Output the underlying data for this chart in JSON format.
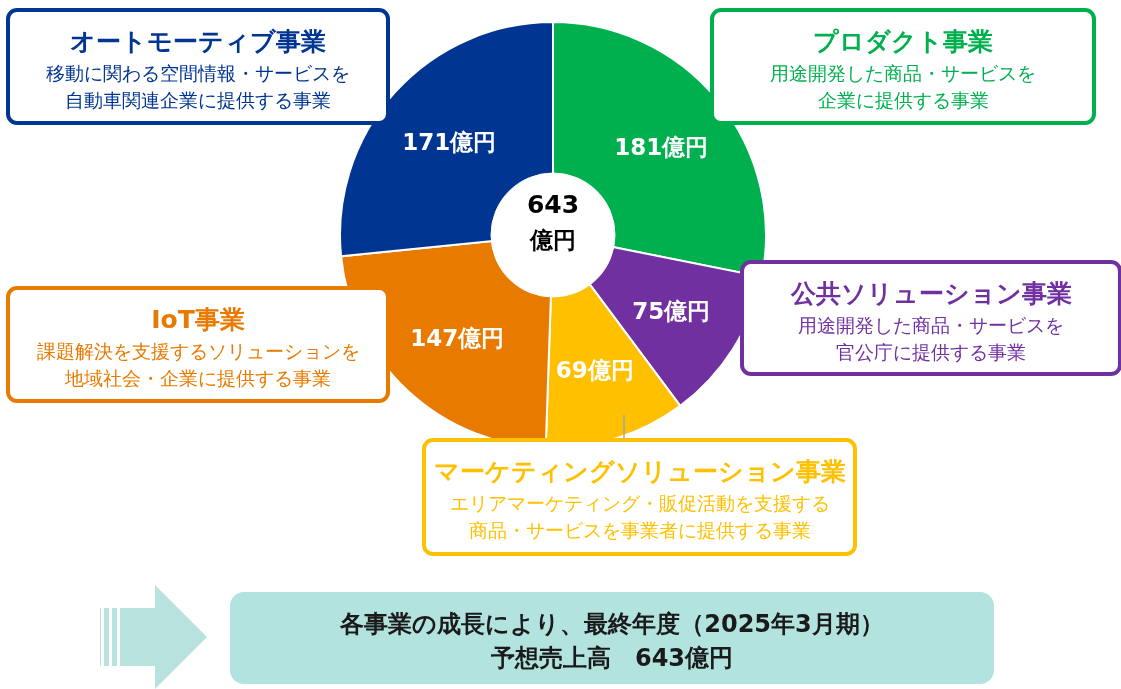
{
  "chart_data": {
    "type": "donut",
    "categories": [
      "プロダクト事業",
      "公共ソリューション事業",
      "マーケティングソリューション事業",
      "IoT事業",
      "オートモーティブ事業"
    ],
    "values": [
      181,
      75,
      69,
      147,
      171
    ],
    "colors": [
      "#00b04f",
      "#7030a0",
      "#ffc000",
      "#e97a00",
      "#003591"
    ],
    "value_labels": [
      "181億円",
      "75億円",
      "69億円",
      "147億円",
      "171億円"
    ],
    "annotations": [
      "643",
      "億円",
      "用途開発した商品・サービスを",
      "企業に提供する事業",
      "用途開発した商品・サービスを",
      "官公庁に提供する事業",
      "エリアマーケティング・販促活動を支援する",
      "商品・サービスを事業者に提供する事業",
      "課題解決を支援するソリューションを",
      "地域社会・企業に提供する事業",
      "移動に関わる空間情報・サービスを",
      "自動車関連企業に提供する事業",
      "各事業の成長により、最終年度（2025年3月期）",
      "予想売上高　643億円"
    ]
  }
}
